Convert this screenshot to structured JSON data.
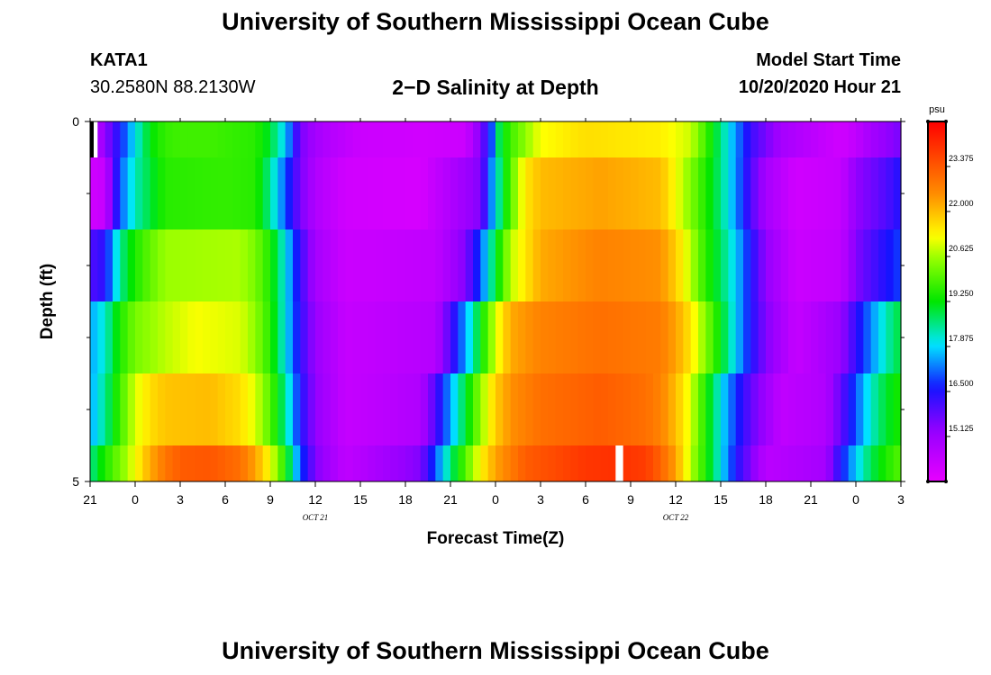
{
  "header": {
    "title": "University of Southern Mississippi Ocean Cube",
    "station": "KATA1",
    "coords": "30.2580N 88.2130W",
    "chart_title": "2−D Salinity at Depth",
    "model_start_label": "Model Start Time",
    "model_start_value": "10/20/2020 Hour 21"
  },
  "footer": {
    "title": "University of Southern Mississippi Ocean Cube"
  },
  "colors": {
    "missing": "#ffffff",
    "axis": "#000000"
  },
  "chart_data": {
    "type": "heatmap",
    "title": "2−D Salinity at Depth",
    "xlabel": "Forecast Time(Z)",
    "ylabel": "Depth (ft)",
    "x_hours": [
      0,
      3,
      6,
      9,
      12,
      15,
      18,
      21,
      24,
      27,
      30,
      33,
      36,
      39,
      42,
      45,
      48,
      51,
      54
    ],
    "x_tick_labels": [
      "21",
      "0",
      "3",
      "6",
      "9",
      "12",
      "15",
      "18",
      "21",
      "0",
      "3",
      "6",
      "9",
      "12",
      "15",
      "18",
      "21",
      "0",
      "3"
    ],
    "x_range_hours": [
      0,
      54
    ],
    "date_labels": [
      {
        "text": "OCT 21",
        "hour": 15
      },
      {
        "text": "OCT 22",
        "hour": 39
      }
    ],
    "y_range": [
      0,
      5
    ],
    "y_tick_labels": [
      {
        "value": 0,
        "label": "0"
      },
      {
        "value": 5,
        "label": "5"
      }
    ],
    "y_minor_ticks": [
      1,
      2,
      3,
      4
    ],
    "layer_edges": [
      0,
      0.5,
      1.5,
      2.5,
      3.5,
      4.5,
      5
    ],
    "step_hours": 0.5,
    "salinity_keyframes": [
      {
        "hours": [
          0,
          0.5,
          2,
          3,
          4,
          5,
          6,
          8,
          11,
          12,
          13,
          14,
          15,
          16,
          18,
          22,
          25,
          26,
          26.7,
          27.3,
          28,
          30,
          33,
          38,
          40,
          41,
          42,
          43,
          44,
          46,
          50,
          51,
          52,
          53,
          54
        ],
        "values": [
          14.0,
          14.7,
          16.6,
          18.0,
          19.2,
          19.7,
          19.8,
          19.8,
          19.6,
          19.0,
          17.8,
          15.6,
          15.0,
          14.7,
          14.3,
          14.2,
          14.3,
          15.5,
          16.8,
          19.0,
          19.8,
          21.2,
          21.6,
          21.4,
          20.9,
          19.8,
          18.6,
          17.4,
          16.2,
          15.0,
          14.2,
          14.5,
          15.0,
          15.3,
          15.6
        ]
      },
      {
        "hours": [
          0,
          1,
          1.5,
          2,
          3,
          5,
          9,
          11,
          12,
          13,
          14,
          15,
          17,
          22,
          26,
          27,
          28,
          29,
          30,
          34,
          38,
          39,
          40,
          41,
          42,
          43,
          44,
          45,
          47,
          50,
          51,
          53,
          54
        ],
        "values": [
          14.2,
          14.4,
          15.8,
          17.0,
          18.3,
          19.6,
          19.7,
          19.6,
          18.5,
          17.0,
          15.6,
          14.8,
          14.2,
          14.1,
          15.5,
          18.0,
          20.0,
          21.5,
          22.0,
          22.3,
          22.0,
          21.2,
          20.4,
          19.5,
          18.6,
          17.4,
          16.0,
          15.0,
          14.2,
          14.4,
          15.3,
          16.0,
          16.5
        ]
      },
      {
        "hours": [
          0,
          1,
          1.5,
          2,
          3,
          4,
          5,
          10,
          11,
          12,
          13,
          14,
          15,
          17,
          23,
          25,
          26,
          27,
          28,
          30,
          34,
          38,
          39,
          40,
          41,
          42,
          43,
          44,
          45,
          47,
          50,
          51,
          53,
          54
        ],
        "values": [
          16.0,
          16.4,
          17.5,
          18.5,
          19.5,
          20.1,
          20.6,
          20.7,
          20.3,
          19.5,
          18.0,
          16.2,
          15.0,
          14.3,
          14.5,
          15.5,
          17.0,
          19.0,
          20.8,
          22.2,
          22.7,
          22.5,
          21.8,
          20.8,
          19.6,
          18.8,
          17.8,
          16.5,
          15.3,
          14.3,
          14.5,
          15.5,
          16.5,
          16.9
        ]
      },
      {
        "hours": [
          0,
          1,
          2,
          3,
          5,
          7,
          10,
          11,
          12,
          13,
          14,
          15,
          17,
          23,
          24,
          25,
          26,
          27,
          28,
          30,
          34,
          38,
          39,
          40,
          41,
          42,
          43,
          44,
          45,
          47,
          50,
          51,
          52,
          53,
          54
        ],
        "values": [
          17.5,
          18.2,
          19.5,
          20.3,
          20.8,
          21.2,
          21.0,
          20.5,
          19.6,
          18.0,
          16.3,
          15.2,
          14.4,
          14.7,
          16.0,
          17.5,
          19.2,
          21.0,
          22.2,
          22.7,
          23.0,
          22.8,
          22.3,
          21.5,
          20.4,
          19.2,
          17.8,
          16.5,
          15.5,
          14.4,
          15.2,
          16.3,
          17.3,
          18.3,
          19.0
        ]
      },
      {
        "hours": [
          0,
          1,
          2,
          3,
          4,
          5,
          8,
          10,
          11,
          12,
          13,
          14,
          15,
          17,
          22,
          23,
          24,
          25,
          26,
          27,
          28,
          30,
          34,
          37,
          38,
          39,
          40,
          41,
          42,
          43,
          44,
          46,
          49,
          50,
          51,
          52,
          53,
          54
        ],
        "values": [
          17.5,
          18.5,
          19.8,
          21.0,
          21.6,
          21.9,
          22.0,
          21.6,
          21.0,
          20.0,
          18.5,
          16.5,
          15.3,
          14.4,
          14.8,
          16.0,
          17.5,
          19.0,
          20.5,
          21.8,
          22.5,
          23.0,
          23.3,
          23.0,
          22.7,
          22.0,
          21.0,
          19.5,
          18.0,
          16.8,
          15.8,
          14.5,
          14.8,
          15.8,
          17.0,
          18.2,
          19.0,
          19.5
        ]
      },
      {
        "hours": [
          0,
          1,
          2,
          3,
          4,
          5,
          6,
          8,
          10,
          11,
          12,
          13,
          14,
          15,
          17,
          22,
          23,
          24,
          25,
          26,
          27,
          29,
          33,
          35,
          37,
          38,
          39,
          40,
          41,
          42,
          43,
          45,
          49,
          50,
          51,
          52,
          53,
          54
        ],
        "values": [
          18.5,
          19.5,
          20.3,
          21.2,
          22.2,
          22.9,
          23.3,
          23.4,
          23.0,
          22.3,
          21.2,
          19.5,
          17.0,
          15.5,
          14.5,
          15.5,
          17.0,
          18.6,
          20.0,
          21.3,
          22.3,
          23.3,
          23.9,
          24.0,
          23.8,
          23.2,
          22.3,
          20.8,
          19.5,
          18.0,
          16.5,
          14.6,
          15.0,
          16.5,
          17.8,
          18.8,
          19.5,
          20.0
        ]
      }
    ],
    "missing_cells": [
      {
        "layer": 0,
        "from_hour": 0,
        "to_hour": 0.5
      },
      {
        "layer": 5,
        "from_hour": 35,
        "to_hour": 35.5
      }
    ],
    "colorbar": {
      "unit": "psu",
      "min": 13.75,
      "max": 24.75,
      "tick_values": [
        15.125,
        16.5,
        17.875,
        19.25,
        20.625,
        22.0,
        23.375
      ],
      "tick_labels": [
        "15.125",
        "16.500",
        "17.875",
        "19.250",
        "20.625",
        "22.000",
        "23.375"
      ]
    }
  }
}
